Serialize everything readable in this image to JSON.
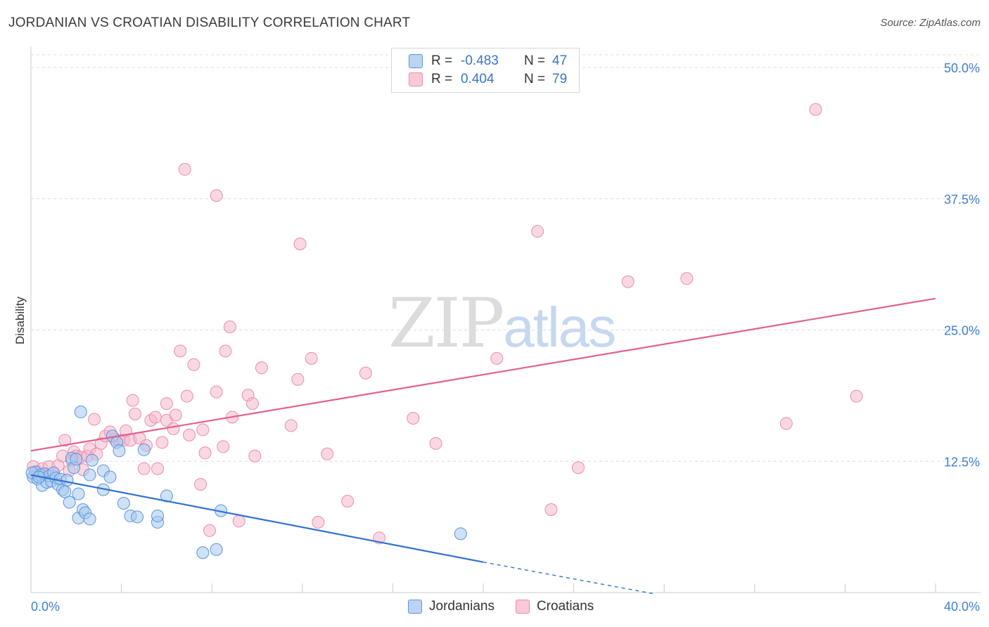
{
  "title": "JORDANIAN VS CROATIAN DISABILITY CORRELATION CHART",
  "source": "Source: ZipAtlas.com",
  "watermark": {
    "zip": "ZIP",
    "atlas": "atlas"
  },
  "legend": {
    "rows": [
      {
        "r_label": "R =",
        "r_value": "-0.483",
        "n_label": "N =",
        "n_value": "47"
      },
      {
        "r_label": "R =",
        "r_value": "0.404",
        "n_label": "N =",
        "n_value": "79"
      }
    ]
  },
  "bottom_legend": [
    "Jordanians",
    "Croatians"
  ],
  "colors": {
    "jordanians_fill": "#a8c8f0",
    "jordanians_stroke": "#5b95dc",
    "jordanians_line": "#2f72d0",
    "croatians_fill": "#f6b8cc",
    "croatians_stroke": "#ea8daa",
    "croatians_line": "#e2608d",
    "tick_text": "#3f7fd1",
    "grid": "#dddddd"
  },
  "chart_data": {
    "type": "scatter",
    "title": "JORDANIAN VS CROATIAN DISABILITY CORRELATION CHART",
    "xlabel": "",
    "ylabel": "Disability",
    "xlim": [
      0,
      40
    ],
    "ylim": [
      0,
      50
    ],
    "x_tick_labels": [
      "0.0%",
      "40.0%"
    ],
    "y_ticks": [
      12.5,
      25.0,
      37.5,
      50.0
    ],
    "y_tick_labels": [
      "12.5%",
      "25.0%",
      "37.5%",
      "50.0%"
    ],
    "grid": "horizontal dashed",
    "legend_position": "top-center",
    "series": [
      {
        "name": "Jordanians",
        "r": -0.483,
        "n": 47,
        "trend": {
          "x0": 0,
          "y0": 11.2,
          "x1": 20,
          "y1": 2.9,
          "dashed_to_x": 27.5,
          "dashed_to_y": -0.1
        },
        "points": [
          [
            0.1,
            11.0
          ],
          [
            0.2,
            11.5
          ],
          [
            0.3,
            10.8
          ],
          [
            0.4,
            11.2
          ],
          [
            0.5,
            10.2
          ],
          [
            0.6,
            11.3
          ],
          [
            0.7,
            10.5
          ],
          [
            0.8,
            11.1
          ],
          [
            0.9,
            10.6
          ],
          [
            1.0,
            11.4
          ],
          [
            1.1,
            10.9
          ],
          [
            1.2,
            10.3
          ],
          [
            1.3,
            10.8
          ],
          [
            1.4,
            9.8
          ],
          [
            1.5,
            9.6
          ],
          [
            1.6,
            10.7
          ],
          [
            1.7,
            8.6
          ],
          [
            1.8,
            12.8
          ],
          [
            1.9,
            11.9
          ],
          [
            2.0,
            12.7
          ],
          [
            2.1,
            7.1
          ],
          [
            2.1,
            9.4
          ],
          [
            2.2,
            17.2
          ],
          [
            2.3,
            7.9
          ],
          [
            2.4,
            7.6
          ],
          [
            2.6,
            7.0
          ],
          [
            2.6,
            11.2
          ],
          [
            2.7,
            12.6
          ],
          [
            3.2,
            9.8
          ],
          [
            3.2,
            11.6
          ],
          [
            3.5,
            11.0
          ],
          [
            3.6,
            14.9
          ],
          [
            3.8,
            14.3
          ],
          [
            3.9,
            13.5
          ],
          [
            4.1,
            8.5
          ],
          [
            4.4,
            7.3
          ],
          [
            4.7,
            7.2
          ],
          [
            5.0,
            13.6
          ],
          [
            5.6,
            6.7
          ],
          [
            5.6,
            7.3
          ],
          [
            6.0,
            9.2
          ],
          [
            7.6,
            3.8
          ],
          [
            8.2,
            4.1
          ],
          [
            8.4,
            7.8
          ],
          [
            19.0,
            5.6
          ],
          [
            0.05,
            11.4
          ],
          [
            0.35,
            11.0
          ]
        ]
      },
      {
        "name": "Croatians",
        "r": 0.404,
        "n": 79,
        "trend": {
          "x0": 0,
          "y0": 13.5,
          "x1": 40,
          "y1": 28.0
        },
        "points": [
          [
            0.1,
            12.0
          ],
          [
            0.3,
            11.5
          ],
          [
            0.5,
            11.8
          ],
          [
            0.6,
            11.2
          ],
          [
            0.8,
            12.0
          ],
          [
            1.0,
            11.4
          ],
          [
            1.2,
            12.1
          ],
          [
            1.4,
            13.0
          ],
          [
            1.5,
            14.5
          ],
          [
            1.7,
            11.6
          ],
          [
            1.8,
            12.6
          ],
          [
            1.9,
            13.4
          ],
          [
            2.0,
            13.0
          ],
          [
            2.2,
            12.9
          ],
          [
            2.3,
            11.7
          ],
          [
            2.5,
            13.0
          ],
          [
            2.6,
            13.7
          ],
          [
            2.8,
            16.5
          ],
          [
            2.9,
            13.2
          ],
          [
            3.1,
            14.2
          ],
          [
            3.3,
            14.9
          ],
          [
            3.5,
            15.3
          ],
          [
            3.7,
            14.6
          ],
          [
            3.9,
            14.5
          ],
          [
            4.1,
            14.5
          ],
          [
            4.2,
            15.4
          ],
          [
            4.4,
            14.5
          ],
          [
            4.5,
            18.3
          ],
          [
            4.6,
            17.0
          ],
          [
            4.8,
            14.7
          ],
          [
            5.0,
            11.8
          ],
          [
            5.1,
            14.0
          ],
          [
            5.3,
            16.4
          ],
          [
            5.5,
            16.7
          ],
          [
            5.6,
            11.8
          ],
          [
            5.8,
            14.3
          ],
          [
            6.0,
            16.4
          ],
          [
            6.0,
            18.0
          ],
          [
            6.3,
            15.6
          ],
          [
            6.4,
            16.9
          ],
          [
            6.6,
            23.0
          ],
          [
            6.8,
            40.3
          ],
          [
            6.9,
            18.7
          ],
          [
            7.0,
            15.0
          ],
          [
            7.2,
            21.7
          ],
          [
            7.5,
            10.3
          ],
          [
            7.6,
            15.5
          ],
          [
            7.7,
            13.3
          ],
          [
            7.9,
            5.9
          ],
          [
            8.2,
            19.1
          ],
          [
            8.2,
            37.8
          ],
          [
            8.5,
            13.9
          ],
          [
            8.6,
            23.0
          ],
          [
            8.8,
            25.3
          ],
          [
            8.9,
            16.7
          ],
          [
            9.2,
            6.8
          ],
          [
            9.6,
            18.8
          ],
          [
            9.8,
            18.0
          ],
          [
            9.9,
            13.0
          ],
          [
            10.2,
            21.4
          ],
          [
            11.5,
            15.9
          ],
          [
            11.8,
            20.3
          ],
          [
            11.9,
            33.2
          ],
          [
            12.4,
            22.3
          ],
          [
            12.7,
            6.7
          ],
          [
            13.1,
            13.2
          ],
          [
            14.0,
            8.7
          ],
          [
            14.8,
            20.9
          ],
          [
            15.4,
            5.2
          ],
          [
            16.9,
            16.6
          ],
          [
            17.9,
            14.2
          ],
          [
            20.6,
            22.3
          ],
          [
            22.4,
            34.4
          ],
          [
            23.0,
            7.9
          ],
          [
            24.2,
            11.9
          ],
          [
            26.4,
            29.6
          ],
          [
            29.0,
            29.9
          ],
          [
            33.4,
            16.1
          ],
          [
            34.7,
            46.0
          ],
          [
            36.5,
            18.7
          ]
        ]
      }
    ]
  }
}
